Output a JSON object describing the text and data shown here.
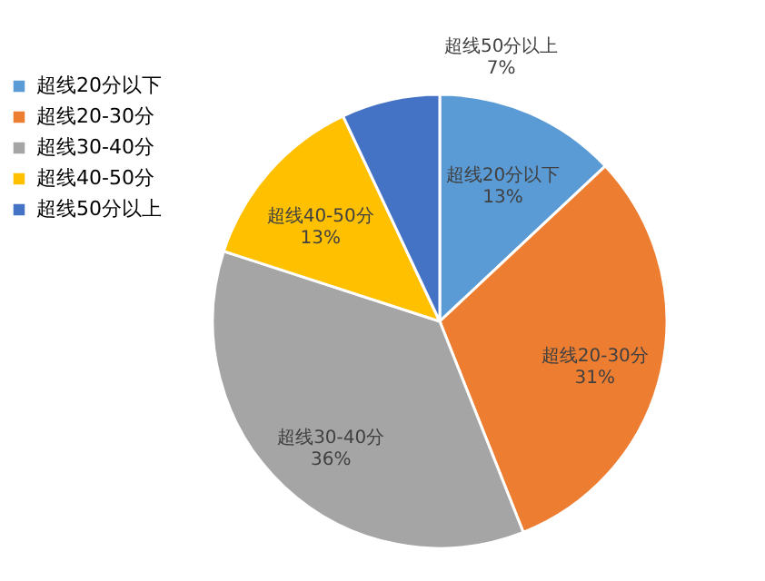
{
  "chart_data": {
    "type": "pie",
    "categories": [
      "超线20分以下",
      "超线20-30分",
      "超线30-40分",
      "超线40-50分",
      "超线50分以上"
    ],
    "values": [
      13,
      31,
      36,
      13,
      7
    ],
    "colors": [
      "#5b9bd5",
      "#ed7d31",
      "#a5a5a5",
      "#ffc000",
      "#4472c4"
    ],
    "value_labels": [
      "13%",
      "31%",
      "36%",
      "13%",
      "7%"
    ],
    "legend": "left"
  }
}
